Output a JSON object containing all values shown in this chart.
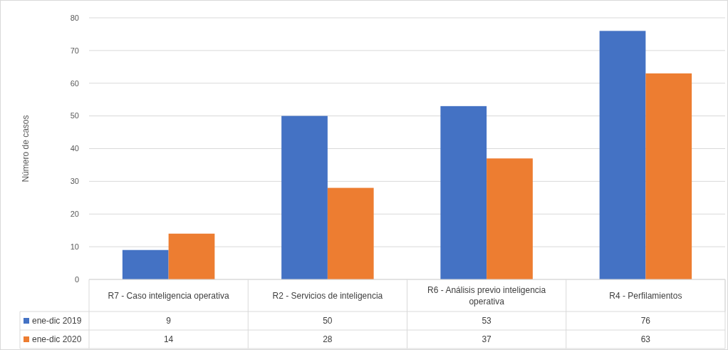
{
  "chart_data": {
    "type": "bar",
    "ylabel": "Número de casos",
    "categories": [
      "R7 - Caso inteligencia operativa",
      "R2 - Servicios de inteligencia",
      "R6 - Análisis previo inteligencia operativa",
      "R4 - Perfilamientos"
    ],
    "series": [
      {
        "name": "ene-dic 2019",
        "color": "#4472c4",
        "values": [
          9,
          50,
          53,
          76
        ]
      },
      {
        "name": "ene-dic 2020",
        "color": "#ed7d31",
        "values": [
          14,
          28,
          37,
          63
        ]
      }
    ],
    "ylim": [
      0,
      80
    ],
    "yticks": [
      0,
      10,
      20,
      30,
      40,
      50,
      60,
      70,
      80
    ],
    "grid": "y",
    "legend": "bottom",
    "data_labels": true
  }
}
